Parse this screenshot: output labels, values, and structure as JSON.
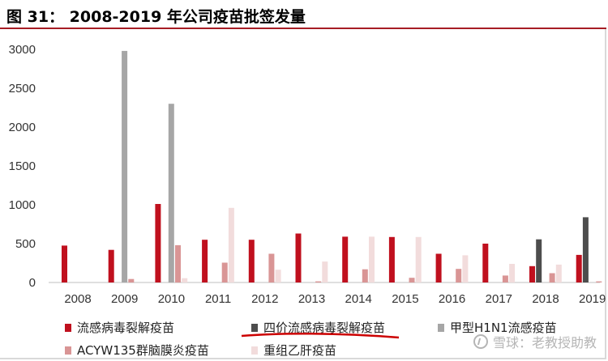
{
  "title": "图 31：  2008-2019 年公司疫苗批签发量",
  "watermark": "雪球：老教授助教",
  "colors": {
    "title_rule": "#a61d24",
    "series": [
      "#c0101e",
      "#4d4d4d",
      "#a6a6a6",
      "#d99595",
      "#f2dcdc"
    ],
    "annotation_underline": "#cc0000"
  },
  "chart_data": {
    "type": "bar",
    "categories": [
      "2008",
      "2009",
      "2010",
      "2011",
      "2012",
      "2013",
      "2014",
      "2015",
      "2016",
      "2017",
      "2018",
      "2019"
    ],
    "ylim": [
      0,
      3000
    ],
    "yticks": [
      0,
      500,
      1000,
      1500,
      2000,
      2500,
      3000
    ],
    "grid": false,
    "legend_position": "bottom",
    "series": [
      {
        "name": "流感病毒裂解疫苗",
        "values": [
          475,
          420,
          1010,
          550,
          550,
          630,
          590,
          585,
          370,
          500,
          210,
          355
        ]
      },
      {
        "name": "四价流感病毒裂解疫苗",
        "values": [
          0,
          0,
          0,
          0,
          0,
          0,
          0,
          0,
          0,
          0,
          555,
          840
        ]
      },
      {
        "name": "甲型H1N1流感疫苗",
        "values": [
          0,
          2980,
          2300,
          0,
          0,
          0,
          0,
          0,
          0,
          0,
          0,
          0
        ]
      },
      {
        "name": "ACYW135群脑膜炎疫苗",
        "values": [
          0,
          45,
          480,
          255,
          370,
          15,
          170,
          60,
          175,
          90,
          120,
          15
        ]
      },
      {
        "name": "重组乙肝疫苗",
        "values": [
          0,
          0,
          55,
          960,
          165,
          270,
          590,
          585,
          350,
          240,
          230,
          0
        ]
      }
    ]
  }
}
